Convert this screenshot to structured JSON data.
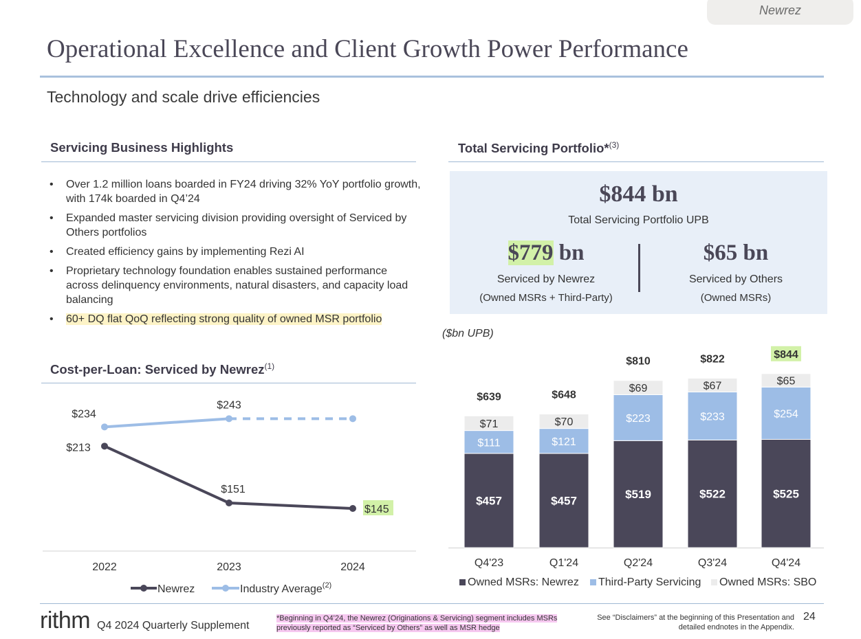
{
  "brand": "Newrez",
  "title": "Operational Excellence and Client Growth Power Performance",
  "subtitle": "Technology and scale drive efficiencies",
  "highlights": {
    "heading": "Servicing Business Highlights",
    "bullets": [
      "Over 1.2 million loans boarded in FY24 driving 32% YoY portfolio growth, with 174k boarded in Q4’24",
      "Expanded master servicing division providing oversight of Serviced by Others portfolios",
      "Created efficiency gains by implementing Rezi AI",
      "Proprietary technology foundation enables sustained performance across delinquency environments, natural disasters, and capacity load balancing",
      "60+ DQ flat QoQ reflecting strong quality of owned MSR portfolio"
    ]
  },
  "portfolio": {
    "heading": "Total Servicing Portfolio*",
    "heading_sup": "(3)",
    "total_value": "$844 bn",
    "total_label": "Total Servicing Portfolio UPB",
    "newrez_value_hl": "$779",
    "newrez_value_rest": " bn",
    "newrez_label": "Serviced by Newrez",
    "newrez_sub": "(Owned MSRs + Third-Party)",
    "others_value": "$65 bn",
    "others_label": "Serviced by Others",
    "others_sub": "(Owned MSRs)",
    "unit_note": "($bn UPB)"
  },
  "cpl": {
    "heading": "Cost-per-Loan: Serviced by Newrez",
    "heading_sup": "(1)",
    "legend_sup": "(2)"
  },
  "colors": {
    "owned_newrez": "#4a4759",
    "third_party": "#9dbde6",
    "sbo": "#ececec",
    "newrez_line": "#4a4759",
    "industry_line": "#9dbde6",
    "highlight_green": "#d2f1a8",
    "highlight_yellow": "#fdf3c6"
  },
  "chart_data": [
    {
      "type": "line",
      "x": [
        "2022",
        "2023",
        "2024"
      ],
      "series": [
        {
          "name": "Newrez",
          "values": [
            213,
            151,
            145
          ],
          "labels": [
            "$213",
            "$151",
            "$145"
          ],
          "style": "solid"
        },
        {
          "name": "Industry Average",
          "values": [
            234,
            243,
            243
          ],
          "labels": [
            "$234",
            "$243",
            ""
          ],
          "style": "solid-then-dashed",
          "dashed_from_index": 1
        }
      ],
      "ylim": [
        130,
        250
      ],
      "grid": false,
      "legend": "bottom"
    },
    {
      "type": "bar",
      "stacked": true,
      "categories": [
        "Q4'23",
        "Q1'24",
        "Q2'24",
        "Q3'24",
        "Q4'24"
      ],
      "series": [
        {
          "name": "Owned MSRs: Newrez",
          "values": [
            457,
            457,
            519,
            522,
            525
          ],
          "labels": [
            "$457",
            "$457",
            "$519",
            "$522",
            "$525"
          ]
        },
        {
          "name": "Third-Party Servicing",
          "values": [
            111,
            121,
            223,
            233,
            254
          ],
          "labels": [
            "$111",
            "$121",
            "$223",
            "$233",
            "$254"
          ]
        },
        {
          "name": "Owned MSRs: SBO",
          "values": [
            71,
            70,
            69,
            67,
            65
          ],
          "labels": [
            "$71",
            "$70",
            "$69",
            "$67",
            "$65"
          ]
        }
      ],
      "totals": [
        639,
        648,
        810,
        822,
        844
      ],
      "total_labels": [
        "$639",
        "$648",
        "$810",
        "$822",
        "$844"
      ],
      "ylim": [
        0,
        900
      ],
      "grid": false,
      "legend": "bottom"
    }
  ],
  "footer": {
    "logo": "rithm",
    "supplement": "Q4 2024 Quarterly Supplement",
    "note": "*Beginning in Q4’24, the Newrez (Originations & Servicing) segment includes MSRs previously reported as “Serviced by Others” as well as MSR hedge",
    "disclaimer": "See “Disclaimers” at the beginning of this Presentation and detailed endnotes in the Appendix.",
    "page": "24"
  }
}
